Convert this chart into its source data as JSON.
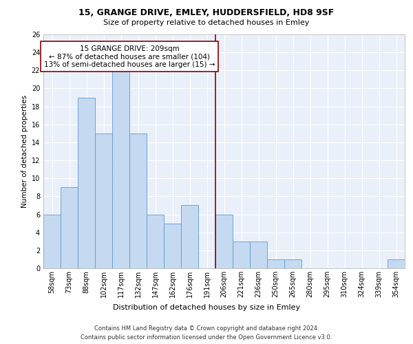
{
  "title1": "15, GRANGE DRIVE, EMLEY, HUDDERSFIELD, HD8 9SF",
  "title2": "Size of property relative to detached houses in Emley",
  "xlabel": "Distribution of detached houses by size in Emley",
  "ylabel": "Number of detached properties",
  "categories": [
    "58sqm",
    "73sqm",
    "88sqm",
    "102sqm",
    "117sqm",
    "132sqm",
    "147sqm",
    "162sqm",
    "176sqm",
    "191sqm",
    "206sqm",
    "221sqm",
    "236sqm",
    "250sqm",
    "265sqm",
    "280sqm",
    "295sqm",
    "310sqm",
    "324sqm",
    "339sqm",
    "354sqm"
  ],
  "values": [
    6,
    9,
    19,
    15,
    22,
    15,
    6,
    5,
    7,
    0,
    6,
    3,
    3,
    1,
    1,
    0,
    0,
    0,
    0,
    0,
    1
  ],
  "bar_color": "#c5d9f0",
  "bar_edge_color": "#5b9bd5",
  "vline_x_index": 9.5,
  "vline_color": "#8b0000",
  "annotation_text": "15 GRANGE DRIVE: 209sqm\n← 87% of detached houses are smaller (104)\n13% of semi-detached houses are larger (15) →",
  "annotation_box_color": "#ffffff",
  "annotation_box_edge": "#8b0000",
  "ylim": [
    0,
    26
  ],
  "yticks": [
    0,
    2,
    4,
    6,
    8,
    10,
    12,
    14,
    16,
    18,
    20,
    22,
    24,
    26
  ],
  "footer": "Contains HM Land Registry data © Crown copyright and database right 2024.\nContains public sector information licensed under the Open Government Licence v3.0.",
  "background_color": "#eaf0fa",
  "grid_color": "#ffffff",
  "title1_fontsize": 9,
  "title2_fontsize": 8,
  "xlabel_fontsize": 8,
  "ylabel_fontsize": 7.5,
  "tick_fontsize": 7,
  "annotation_fontsize": 7.5,
  "footer_fontsize": 6
}
